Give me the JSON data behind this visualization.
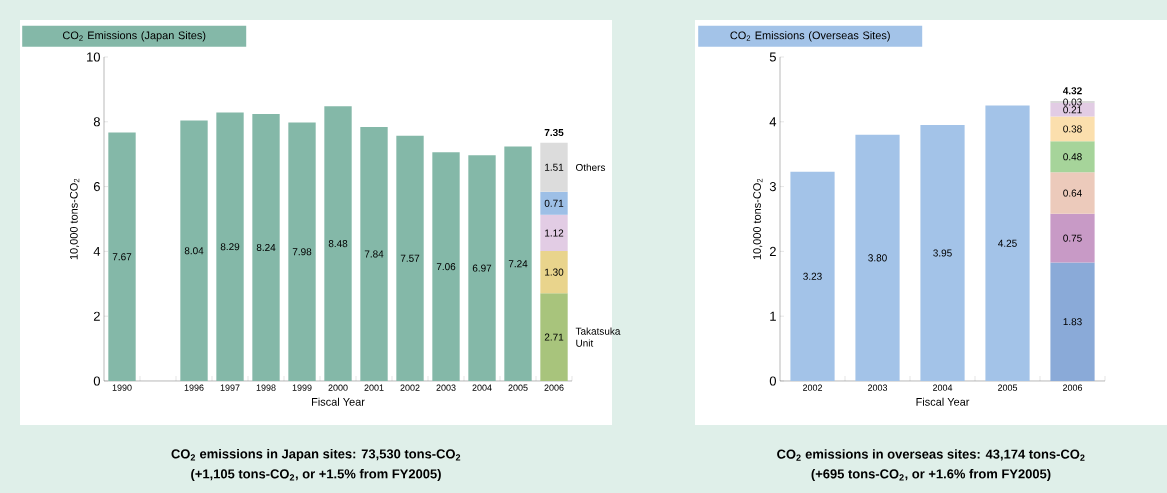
{
  "chart_data": [
    {
      "type": "bar",
      "stacked": true,
      "title": "CO$_{2}$ Emissions (Japan Sites)",
      "xlabel": "Fiscal Year",
      "ylabel": "10,000 tons-CO$_{2}$",
      "categories": [
        "1990",
        null,
        "1996",
        "1997",
        "1998",
        "1999",
        "2000",
        "2001",
        "2002",
        "2003",
        "2004",
        "2005",
        "2006"
      ],
      "ylim": [
        0,
        10
      ],
      "yticks": [
        0,
        2,
        4,
        6,
        8,
        10
      ],
      "series": [
        {
          "color": "#84b8a8",
          "values": [
            7.67,
            null,
            8.04,
            8.29,
            8.24,
            7.98,
            8.48,
            7.84,
            7.57,
            7.06,
            6.97,
            7.24,
            null
          ],
          "value_labels": [
            "7.67",
            null,
            "8.04",
            "8.29",
            "8.24",
            "7.98",
            "8.48",
            "7.84",
            "7.57",
            "7.06",
            "6.97",
            "7.24",
            null
          ]
        },
        {
          "name": "Takatsuka Unit",
          "color": "#a8c47c",
          "values": [
            null,
            null,
            null,
            null,
            null,
            null,
            null,
            null,
            null,
            null,
            null,
            null,
            2.71
          ],
          "value_labels": [
            null,
            null,
            null,
            null,
            null,
            null,
            null,
            null,
            null,
            null,
            null,
            null,
            "2.71"
          ]
        },
        {
          "color": "#e9d48c",
          "values": [
            null,
            null,
            null,
            null,
            null,
            null,
            null,
            null,
            null,
            null,
            null,
            null,
            1.3
          ],
          "value_labels": [
            null,
            null,
            null,
            null,
            null,
            null,
            null,
            null,
            null,
            null,
            null,
            null,
            "1.30"
          ]
        },
        {
          "color": "#e2cce4",
          "values": [
            null,
            null,
            null,
            null,
            null,
            null,
            null,
            null,
            null,
            null,
            null,
            null,
            1.12
          ],
          "value_labels": [
            null,
            null,
            null,
            null,
            null,
            null,
            null,
            null,
            null,
            null,
            null,
            null,
            "1.12"
          ]
        },
        {
          "color": "#9dbfe6",
          "values": [
            null,
            null,
            null,
            null,
            null,
            null,
            null,
            null,
            null,
            null,
            null,
            null,
            0.71
          ],
          "value_labels": [
            null,
            null,
            null,
            null,
            null,
            null,
            null,
            null,
            null,
            null,
            null,
            null,
            "0.71"
          ]
        },
        {
          "name": "Others",
          "color": "#dcdcdc",
          "values": [
            null,
            null,
            null,
            null,
            null,
            null,
            null,
            null,
            null,
            null,
            null,
            null,
            1.51
          ],
          "value_labels": [
            null,
            null,
            null,
            null,
            null,
            null,
            null,
            null,
            null,
            null,
            null,
            null,
            "1.51"
          ]
        }
      ],
      "totals": [
        null,
        null,
        null,
        null,
        null,
        null,
        null,
        null,
        null,
        null,
        null,
        null,
        "7.35"
      ],
      "annotations": [
        "CO$_{2}$ emissions in Japan sites: 73,530 tons-CO$_{2}$",
        "(+1,105 tons-CO$_{2}$, or +1.5% from FY2005)"
      ]
    },
    {
      "type": "bar",
      "stacked": true,
      "title": "CO$_{2}$ Emissions (Overseas Sites)",
      "xlabel": "Fiscal Year",
      "ylabel": "10,000 tons-CO$_{2}$",
      "categories": [
        "2002",
        "2003",
        "2004",
        "2005",
        "2006"
      ],
      "ylim": [
        0,
        5
      ],
      "yticks": [
        0,
        1,
        2,
        3,
        4,
        5
      ],
      "series": [
        {
          "color": "#a3c3e8",
          "values": [
            3.23,
            3.8,
            3.95,
            4.25,
            null
          ],
          "value_labels": [
            "3.23",
            "3.80",
            "3.95",
            "4.25",
            null
          ]
        },
        {
          "color": "#8aaad8",
          "values": [
            null,
            null,
            null,
            null,
            1.83
          ],
          "value_labels": [
            null,
            null,
            null,
            null,
            "1.83"
          ]
        },
        {
          "color": "#c89ac6",
          "values": [
            null,
            null,
            null,
            null,
            0.75
          ],
          "value_labels": [
            null,
            null,
            null,
            null,
            "0.75"
          ]
        },
        {
          "color": "#eccabb",
          "values": [
            null,
            null,
            null,
            null,
            0.64
          ],
          "value_labels": [
            null,
            null,
            null,
            null,
            "0.64"
          ]
        },
        {
          "color": "#a6d49a",
          "values": [
            null,
            null,
            null,
            null,
            0.48
          ],
          "value_labels": [
            null,
            null,
            null,
            null,
            "0.48"
          ]
        },
        {
          "color": "#fbdfad",
          "values": [
            null,
            null,
            null,
            null,
            0.38
          ],
          "value_labels": [
            null,
            null,
            null,
            null,
            "0.38"
          ]
        },
        {
          "color": "#e2cce4",
          "values": [
            null,
            null,
            null,
            null,
            0.21
          ],
          "value_labels": [
            null,
            null,
            null,
            null,
            "0.21"
          ]
        },
        {
          "color": "#d9d9d9",
          "values": [
            null,
            null,
            null,
            null,
            0.03
          ],
          "value_labels": [
            null,
            null,
            null,
            null,
            "0.03"
          ]
        }
      ],
      "totals": [
        null,
        null,
        null,
        null,
        "4.32"
      ],
      "annotations": [
        "CO$_{2}$ emissions in overseas sites: 43,174 tons-CO$_{2}$",
        "(+695 tons-CO$_{2}$, or +1.6% from FY2005)"
      ]
    }
  ]
}
